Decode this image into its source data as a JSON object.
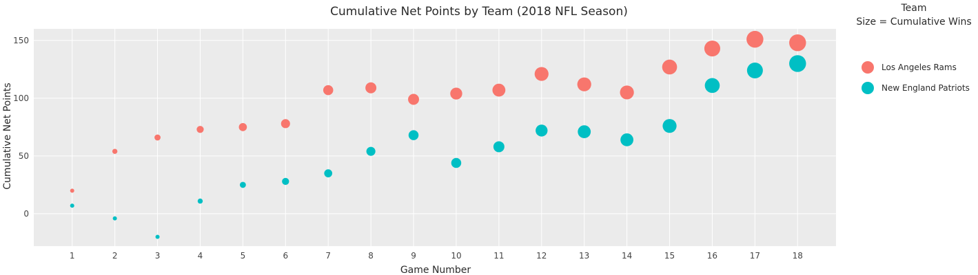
{
  "chart_data": {
    "type": "scatter",
    "title": "Cumulative Net Points by Team (2018 NFL Season)",
    "xlabel": "Game Number",
    "ylabel": "Cumulative Net Points",
    "x": [
      1,
      2,
      3,
      4,
      5,
      6,
      7,
      8,
      9,
      10,
      11,
      12,
      13,
      14,
      15,
      16,
      17,
      18
    ],
    "x_ticks": [
      "1",
      "2",
      "3",
      "4",
      "5",
      "6",
      "7",
      "8",
      "9",
      "10",
      "11",
      "12",
      "13",
      "14",
      "15",
      "16",
      "17",
      "18"
    ],
    "y_ticks": [
      "0",
      "50",
      "100",
      "150"
    ],
    "xlim": [
      0.1,
      18.9
    ],
    "ylim": [
      -28,
      160
    ],
    "grid": true,
    "plot_background": "#ebebeb",
    "legend_title_line1": "Team",
    "legend_title_line2": "Size = Cumulative Wins",
    "legend_position": "right",
    "series": [
      {
        "name": "Los Angeles Rams",
        "color": "#F8766D",
        "values": [
          20,
          54,
          66,
          73,
          75,
          78,
          107,
          109,
          99,
          104,
          107,
          121,
          112,
          105,
          127,
          143,
          151,
          148
        ],
        "cumulative_wins": [
          1,
          2,
          3,
          4,
          5,
          6,
          7,
          8,
          8,
          9,
          10,
          11,
          11,
          11,
          12,
          13,
          14,
          14
        ]
      },
      {
        "name": "New England Patriots",
        "color": "#00BFC4",
        "values": [
          7,
          -4,
          -20,
          11,
          25,
          28,
          35,
          54,
          68,
          44,
          58,
          72,
          71,
          64,
          76,
          111,
          124,
          130
        ],
        "cumulative_wins": [
          1,
          1,
          1,
          2,
          3,
          4,
          5,
          6,
          7,
          7,
          8,
          9,
          10,
          10,
          11,
          12,
          13,
          14
        ]
      }
    ]
  }
}
